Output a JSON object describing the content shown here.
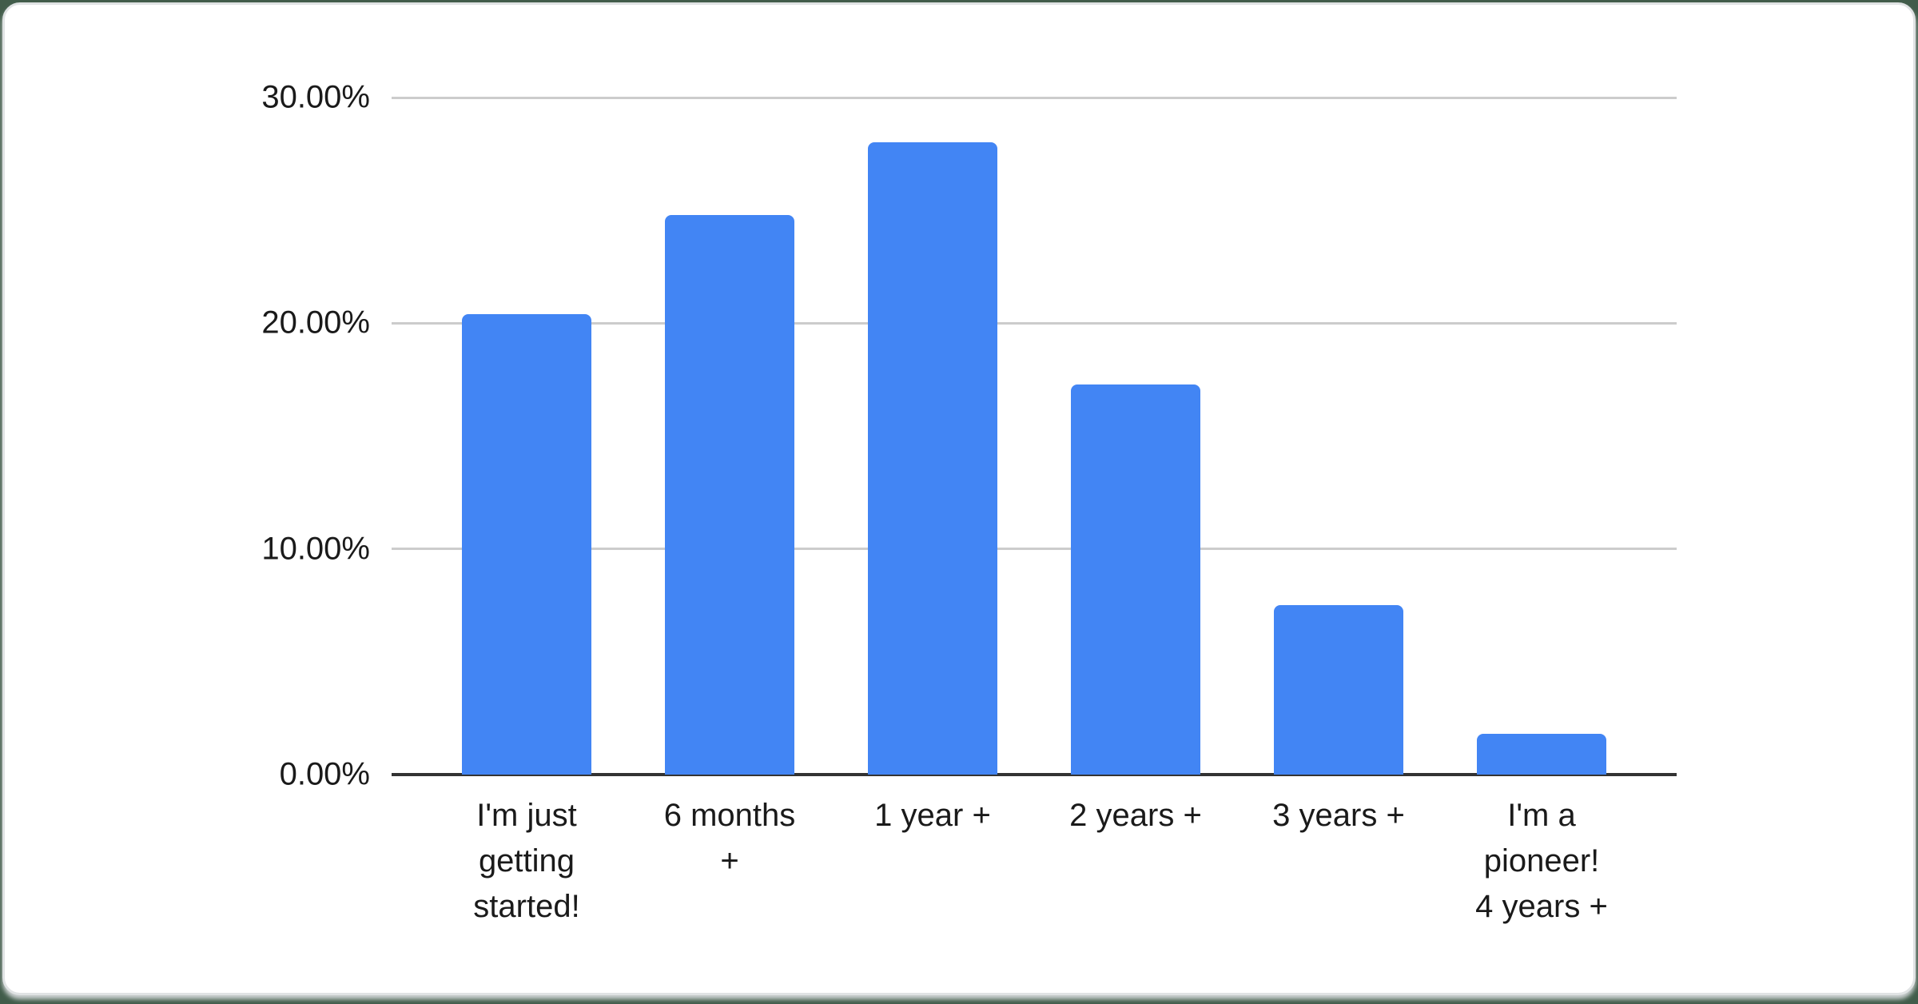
{
  "chart_data": {
    "type": "bar",
    "title": "",
    "xlabel": "",
    "ylabel": "",
    "categories": [
      "I'm just getting started!",
      "6 months +",
      "1 year +",
      "2 years +",
      "3 years +",
      "I'm a pioneer! 4 years +"
    ],
    "category_lines": [
      [
        "I'm just",
        "getting",
        "started!"
      ],
      [
        "6 months",
        "+"
      ],
      [
        "1 year +"
      ],
      [
        "2 years +"
      ],
      [
        "3 years +"
      ],
      [
        "I'm a",
        "pioneer!",
        "4 years +"
      ]
    ],
    "values": [
      20.4,
      24.8,
      28.0,
      17.3,
      7.5,
      1.8
    ],
    "unit": "%",
    "ylim": [
      0,
      30
    ],
    "yticks": [
      {
        "value": 0,
        "label": "0.00%"
      },
      {
        "value": 10,
        "label": "10.00%"
      },
      {
        "value": 20,
        "label": "20.00%"
      },
      {
        "value": 30,
        "label": "30.00%"
      }
    ],
    "grid": true,
    "legend_position": "none"
  },
  "colors": {
    "bar": "#4285f4",
    "gridline": "#cccccc",
    "axis_line": "#333333",
    "label_text": "#1a1a1a",
    "card_background": "#ffffff",
    "card_border": "#e0e3e4",
    "page_background": "#415c4a"
  }
}
